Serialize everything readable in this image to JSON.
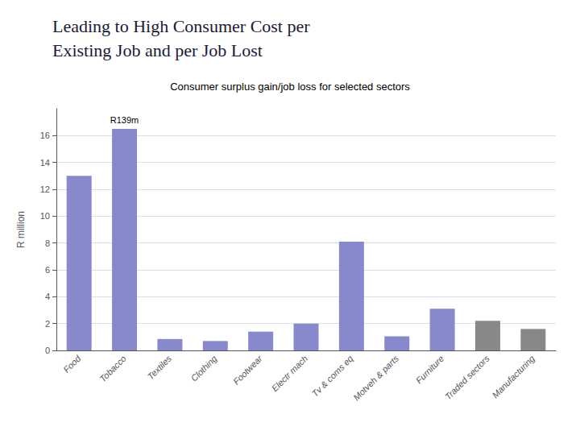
{
  "chart_data": {
    "type": "bar",
    "title": "Leading to High Consumer Cost per\nExisting Job and per Job Lost",
    "subtitle": "Consumer surplus gain/job loss for selected sectors",
    "categories": [
      "Food",
      "Tobacco",
      "Textiles",
      "Clothing",
      "Footwear",
      "Electr mach",
      "Tv & coms eq",
      "Motveh & parts",
      "Furniture",
      "Traded sectors",
      "Manufacturing"
    ],
    "values": [
      13.0,
      16.5,
      0.85,
      0.7,
      1.4,
      2.0,
      8.1,
      1.05,
      3.1,
      2.2,
      1.6
    ],
    "colors": [
      "#8888cc",
      "#8888cc",
      "#8888cc",
      "#8888cc",
      "#8888cc",
      "#8888cc",
      "#8888cc",
      "#8888cc",
      "#8888cc",
      "#888888",
      "#888888"
    ],
    "ylabel": "R million",
    "ylim": [
      0,
      18
    ],
    "yticks": [
      0,
      2,
      4,
      6,
      8,
      10,
      12,
      14,
      16
    ],
    "grid": true,
    "annotations": [
      {
        "text": "R139m",
        "x": "Tobacco",
        "y": 16.7
      }
    ]
  }
}
